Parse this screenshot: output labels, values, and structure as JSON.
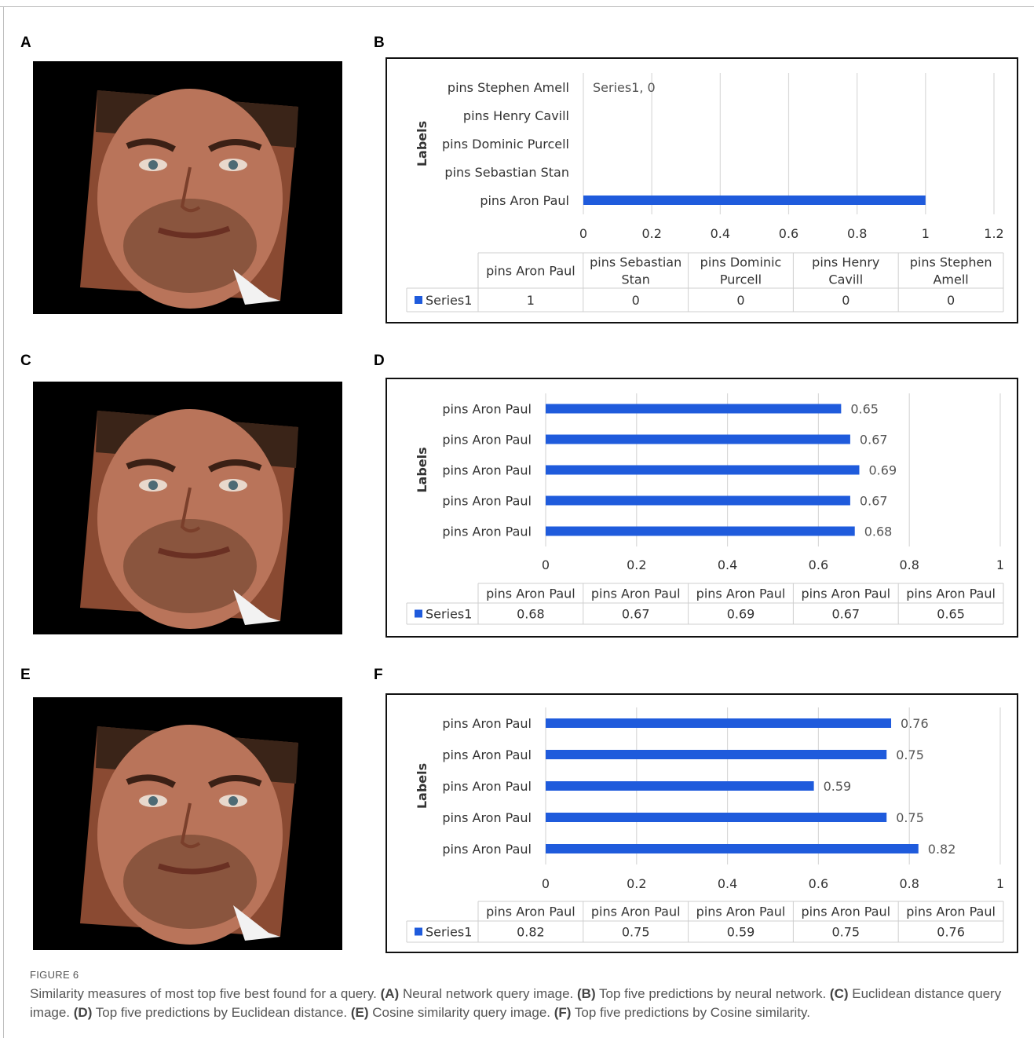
{
  "panels": {
    "a": {
      "letter": "A"
    },
    "b": {
      "letter": "B"
    },
    "c": {
      "letter": "C"
    },
    "d": {
      "letter": "D"
    },
    "e": {
      "letter": "E"
    },
    "f": {
      "letter": "F"
    }
  },
  "chart_data": [
    {
      "panel": "B",
      "type": "bar",
      "orientation": "horizontal",
      "ylabel": "Labels",
      "categories": [
        "pins Aron Paul",
        "pins Sebastian Stan",
        "pins Dominic Purcell",
        "pins Henry Cavill",
        "pins Stephen Amell"
      ],
      "table_headers": [
        [
          "pins Aron Paul"
        ],
        [
          "pins Sebastian",
          "Stan"
        ],
        [
          "pins Dominic",
          "Purcell"
        ],
        [
          "pins Henry",
          "Cavill"
        ],
        [
          "pins Stephen",
          "Amell"
        ]
      ],
      "series": [
        {
          "name": "Series1",
          "values": [
            1,
            0,
            0,
            0,
            0
          ]
        }
      ],
      "value_labels": [],
      "annotation": "Series1, 0",
      "xlim": [
        0,
        1.2
      ],
      "xticks": [
        "0",
        "0.2",
        "0.4",
        "0.6",
        "0.8",
        "1",
        "1.2"
      ],
      "table_values": [
        "1",
        "0",
        "0",
        "0",
        "0"
      ],
      "grid": true,
      "legend": "data-table",
      "color": "#1f5bdc"
    },
    {
      "panel": "D",
      "type": "bar",
      "orientation": "horizontal",
      "ylabel": "Labels",
      "categories": [
        "pins Aron Paul",
        "pins Aron Paul",
        "pins Aron Paul",
        "pins Aron Paul",
        "pins Aron Paul"
      ],
      "table_headers": [
        [
          "pins Aron Paul"
        ],
        [
          "pins Aron Paul"
        ],
        [
          "pins Aron Paul"
        ],
        [
          "pins Aron Paul"
        ],
        [
          "pins Aron Paul"
        ]
      ],
      "series": [
        {
          "name": "Series1",
          "values": [
            0.68,
            0.67,
            0.69,
            0.67,
            0.65
          ]
        }
      ],
      "value_labels": [
        "0.68",
        "0.67",
        "0.69",
        "0.67",
        "0.65"
      ],
      "annotation": "",
      "xlim": [
        0,
        1
      ],
      "xticks": [
        "0",
        "0.2",
        "0.4",
        "0.6",
        "0.8",
        "1"
      ],
      "table_values": [
        "0.68",
        "0.67",
        "0.69",
        "0.67",
        "0.65"
      ],
      "grid": true,
      "legend": "data-table",
      "color": "#1f5bdc"
    },
    {
      "panel": "F",
      "type": "bar",
      "orientation": "horizontal",
      "ylabel": "Labels",
      "categories": [
        "pins Aron Paul",
        "pins Aron Paul",
        "pins Aron Paul",
        "pins Aron Paul",
        "pins Aron Paul"
      ],
      "table_headers": [
        [
          "pins Aron Paul"
        ],
        [
          "pins Aron Paul"
        ],
        [
          "pins Aron Paul"
        ],
        [
          "pins Aron Paul"
        ],
        [
          "pins Aron Paul"
        ]
      ],
      "series": [
        {
          "name": "Series1",
          "values": [
            0.82,
            0.75,
            0.59,
            0.75,
            0.76
          ]
        }
      ],
      "value_labels": [
        "0.82",
        "0.75",
        "0.59",
        "0.75",
        "0.76"
      ],
      "annotation": "",
      "xlim": [
        0,
        1
      ],
      "xticks": [
        "0",
        "0.2",
        "0.4",
        "0.6",
        "0.8",
        "1"
      ],
      "table_values": [
        "0.82",
        "0.75",
        "0.59",
        "0.75",
        "0.76"
      ],
      "grid": true,
      "legend": "data-table",
      "color": "#1f5bdc"
    }
  ],
  "caption": {
    "label": "FIGURE 6",
    "parts": [
      {
        "bold": false,
        "text": "Similarity measures of most top five best found for a query. "
      },
      {
        "bold": true,
        "text": "(A)"
      },
      {
        "bold": false,
        "text": " Neural network query image. "
      },
      {
        "bold": true,
        "text": "(B)"
      },
      {
        "bold": false,
        "text": " Top five predictions by neural network. "
      },
      {
        "bold": true,
        "text": "(C)"
      },
      {
        "bold": false,
        "text": " Euclidean distance query image. "
      },
      {
        "bold": true,
        "text": "(D)"
      },
      {
        "bold": false,
        "text": " Top five predictions by Euclidean distance. "
      },
      {
        "bold": true,
        "text": "(E)"
      },
      {
        "bold": false,
        "text": " Cosine similarity query image. "
      },
      {
        "bold": true,
        "text": "(F)"
      },
      {
        "bold": false,
        "text": " Top five predictions by Cosine similarity."
      }
    ]
  }
}
